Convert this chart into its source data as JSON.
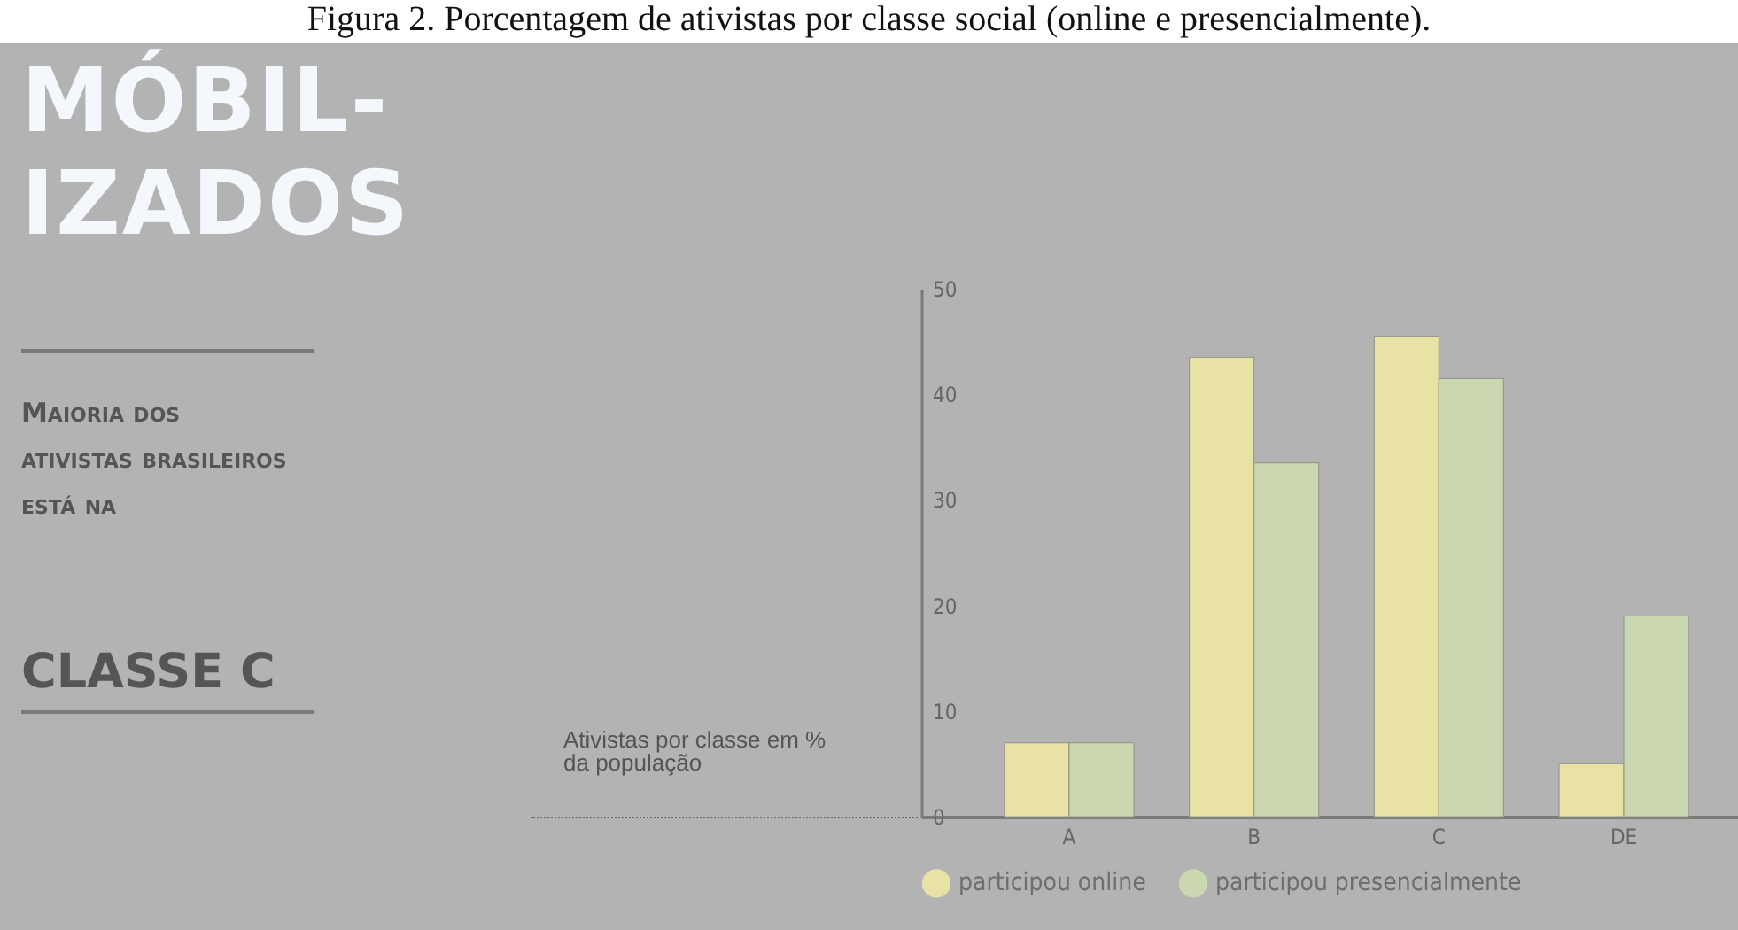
{
  "chart_data": {
    "type": "bar",
    "title": "Figura 2. Porcentagem de ativistas por classe social (online e presencialmente).",
    "subtitle": "MÓBIL-IZADOS",
    "annotations": [
      "Maioria dos ativistas brasileiros está na",
      "CLASSE C"
    ],
    "ylabel": "Ativistas por classe em % da população",
    "categories": [
      "A",
      "B",
      "C",
      "DE"
    ],
    "series": [
      {
        "name": "participou online",
        "color": "#e9e2a5",
        "values": [
          7,
          43.5,
          45.5,
          5
        ]
      },
      {
        "name": "participou presencialmente",
        "color": "#cad7b1",
        "values": [
          7,
          33.5,
          41.5,
          19
        ]
      }
    ],
    "ylim": [
      0,
      50
    ],
    "yticks": [
      0,
      10,
      20,
      30,
      40,
      50
    ],
    "grid": false,
    "legend": "bottom"
  }
}
